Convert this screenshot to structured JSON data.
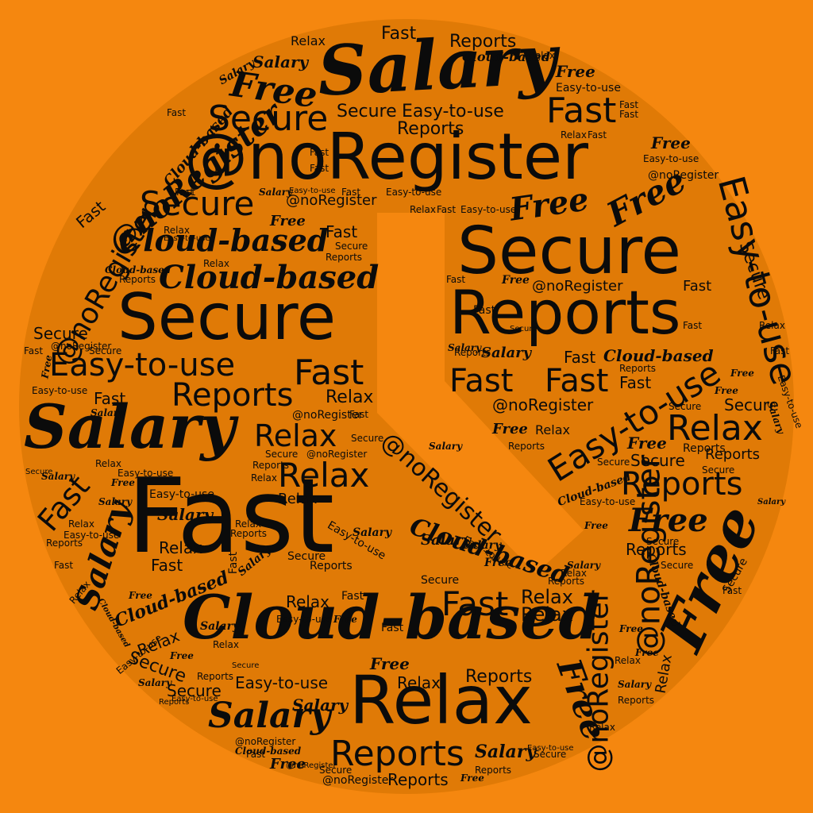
{
  "words": {
    "salary": "Salary",
    "fast": "Fast",
    "noregister": "@noRegister",
    "secure": "Secure",
    "reports": "Reports",
    "cloud": "Cloud-based",
    "easy": "Easy-to-use",
    "relax": "Relax",
    "free": "Free"
  },
  "colors": {
    "background": "#f5870f",
    "clock_face": "#e07a06",
    "text": "#0b0b0b"
  }
}
